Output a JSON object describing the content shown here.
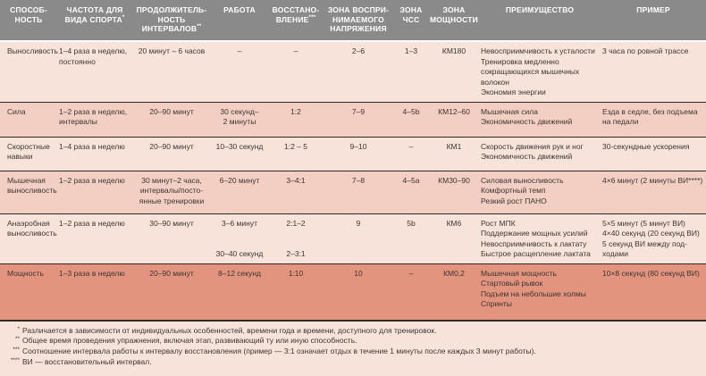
{
  "colors": {
    "header_bg": "#8a8a8a",
    "header_text": "#ffffff",
    "row_light": "#f8e3da",
    "row_medium": "#f3cfc3",
    "row_dark": "#e2947f",
    "separator": "#2e2a28",
    "text": "#3b3632"
  },
  "table": {
    "columns": [
      {
        "label": "СПОСОБ-\nНОСТЬ"
      },
      {
        "label": "ЧАСТОТА ДЛЯ\nВИДА СПОРТА",
        "sup": "*"
      },
      {
        "label": "ПРОДОЛЖИТЕЛЬ-\nНОСТЬ\nИНТЕРВАЛОВ",
        "sup": "**"
      },
      {
        "label": "РАБОТА"
      },
      {
        "label": "ВОССТАНО-\nВЛЕНИЕ",
        "sup": "***"
      },
      {
        "label": "ЗОНА ВОСПРИ-\nНИМАЕМОГО\nНАПРЯЖЕНИЯ"
      },
      {
        "label": "ЗОНА\nЧСС"
      },
      {
        "label": "ЗОНА\nМОЩНОСТИ"
      },
      {
        "label": "ПРЕИМУЩЕСТВО"
      },
      {
        "label": "ПРИМЕР"
      }
    ],
    "rows": [
      {
        "tone": "light",
        "cells": [
          "Выносливость",
          "1–4 раза в неделю,\nпостоянно",
          "20 минут – 6 часов",
          "–",
          "–",
          "2–6",
          "1–3",
          "КМ180",
          "Невосприимчивость к усталости\nТренировка медленно\nсокращающихся мышечных\nволокон\nЭкономия энергии",
          "3 часа по ровной трассе"
        ]
      },
      {
        "tone": "medium",
        "cells": [
          "Сила",
          "1–2 раза в неделю,\nинтервалы",
          "20–90 минут",
          "30 секунд–\n2 минуты",
          "1:2",
          "7–9",
          "4–5b",
          "КМ12–60",
          "Мышечная сила\nЭкономичность движений",
          "Езда в седле, без подъема\nна педали"
        ]
      },
      {
        "tone": "light",
        "cells": [
          "Скоростные\nнавыки",
          "1–4 раза в неделю",
          "20–90 минут",
          "10–30 секунд",
          "1:2 – 5",
          "9–10",
          "–",
          "КМ1",
          "Скорость движения рук и ног\nЭкономичность движений",
          "30-секундные ускорения"
        ]
      },
      {
        "tone": "medium",
        "cells": [
          "Мышечная\nвыносливость",
          "1–2 раза в неделю",
          "30 минут–2 часа,\nинтервалы/посто-\nянные тренировки",
          "6–20 минут",
          "3–4:1",
          "7–8",
          "4–5a",
          "КМ30–90",
          "Силовая выносливость\nКомфортный темп\nРезкий рост ПАНО",
          "4×6 минут (2 минуты ВИ****)"
        ]
      },
      {
        "tone": "light",
        "cells": [
          "Анаэробная\nвыносливость",
          "1–2 раза в неделю",
          "30–90 минут",
          "3–6 минут\n\n\n30–40 секунд",
          "2:1–2\n\n\n2–3:1",
          "9",
          "5b",
          "КМ6",
          "Рост МПК\nПоддержание мощных усилий\nНевосприимчивость к лактату\nБыстрое расщепление лактата",
          "5×5 минут (5 минут ВИ)\n4×40 секунд (20 секунд ВИ)\n5 секунд ВИ между под-\nходами"
        ]
      },
      {
        "tone": "dark",
        "cells": [
          "Мощность",
          "1–3 раза в неделю",
          "20–90 минут",
          "8–12 секунд",
          "1:10",
          "10",
          "–",
          "КМ0,2",
          "Мышечная мощность\nСтартовый рывок\nПодъем на небольшие холмы\nСпринты",
          "10×8 секунд (80 секунд ВИ)"
        ]
      }
    ]
  },
  "footnotes": [
    {
      "mark": "*",
      "text": "Различается в зависимости от индивидуальных особенностей, времени года и времени, доступного для тренировок."
    },
    {
      "mark": "**",
      "text": "Общее время проведения упражнения, включая этап, развивающий ту или иную способность."
    },
    {
      "mark": "***",
      "text": "Соотношение интервала работы к интервалу восстановления (пример — 3:1 означает отдых в течение 1 минуты после каждых 3 минут работы)."
    },
    {
      "mark": "****",
      "text": "ВИ — восстановительный интервал."
    }
  ]
}
